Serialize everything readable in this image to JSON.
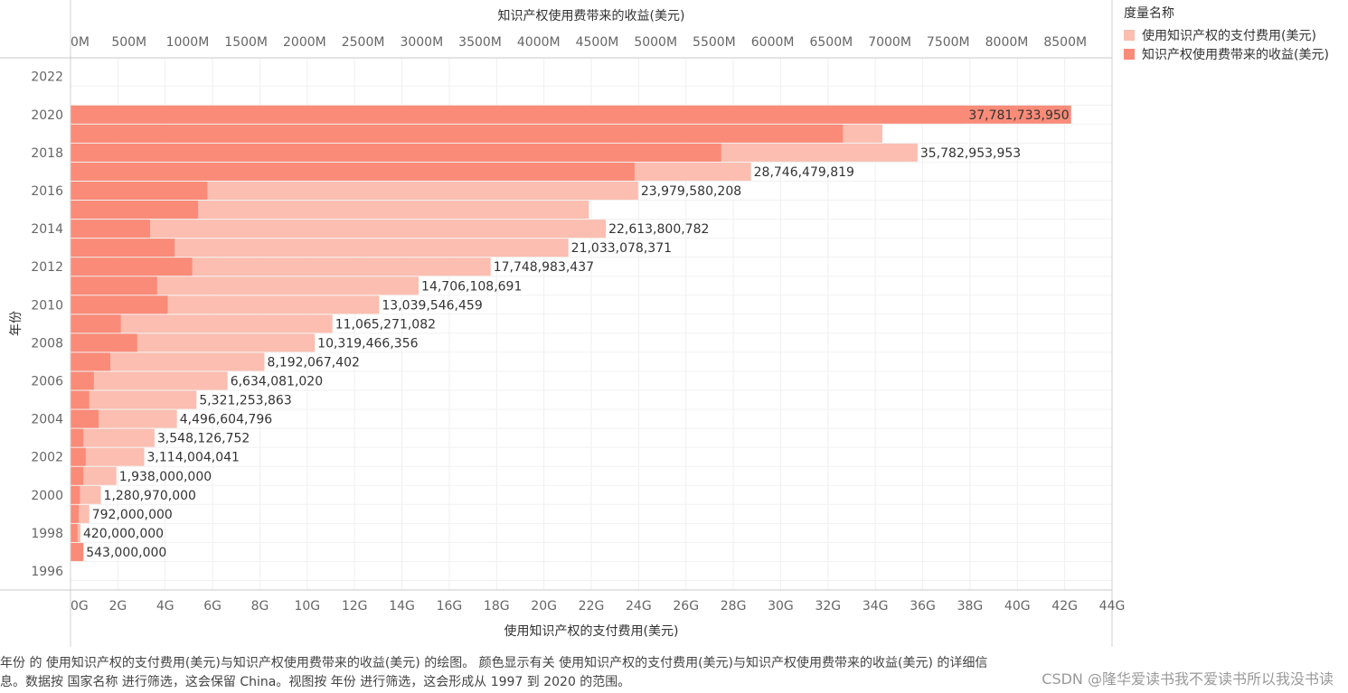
{
  "chart_data": {
    "type": "bar",
    "orientation": "horizontal",
    "y_title": "年份",
    "y_ticks": [
      "2022",
      "2020",
      "2018",
      "2016",
      "2014",
      "2012",
      "2010",
      "2008",
      "2006",
      "2004",
      "2002",
      "2000",
      "1998",
      "1996"
    ],
    "ylim": [
      1996,
      2022
    ],
    "top_axis": {
      "title": "知识产权使用费带来的收益(美元)",
      "ticks": [
        "0M",
        "500M",
        "1000M",
        "1500M",
        "2000M",
        "2500M",
        "3000M",
        "3500M",
        "4000M",
        "4500M",
        "5000M",
        "5500M",
        "6000M",
        "6500M",
        "7000M",
        "7500M",
        "8000M",
        "8500M"
      ],
      "range_musd": [
        0,
        8900
      ]
    },
    "bottom_axis": {
      "title": "使用知识产权的支付费用(美元)",
      "ticks": [
        "0G",
        "2G",
        "4G",
        "6G",
        "8G",
        "10G",
        "12G",
        "14G",
        "16G",
        "18G",
        "20G",
        "22G",
        "24G",
        "26G",
        "28G",
        "30G",
        "32G",
        "34G",
        "36G",
        "38G",
        "40G",
        "42G",
        "44G"
      ],
      "range_gusd": [
        0,
        44
      ]
    },
    "legend": {
      "title": "度量名称",
      "placement": "top-right",
      "items": [
        {
          "label": "使用知识产权的支付费用(美元)",
          "color": "#fbbeb0"
        },
        {
          "label": "知识产权使用费带来的收益(美元)",
          "color": "#f98b78"
        }
      ]
    },
    "series": [
      {
        "name": "使用知识产权的支付费用(美元)",
        "color": "#fbbeb0",
        "unit": "USD",
        "years": [
          1997,
          1998,
          1999,
          2000,
          2001,
          2002,
          2003,
          2004,
          2005,
          2006,
          2007,
          2008,
          2009,
          2010,
          2011,
          2012,
          2013,
          2014,
          2015,
          2016,
          2017,
          2018,
          2019,
          2020
        ],
        "values": [
          543000000,
          420000000,
          792000000,
          1280970000,
          1938000000,
          3114004041,
          3548126752,
          4496604796,
          5321253863,
          6634081020,
          8192067402,
          10319466356,
          11065271082,
          13039546459,
          14706108691,
          17748983437,
          21033078371,
          22613800782,
          21900000000,
          23979580208,
          28746479819,
          35782953953,
          34300000000,
          37781733950
        ]
      },
      {
        "name": "知识产权使用费带来的收益(美元)",
        "color": "#f98b78",
        "unit": "USD",
        "years": [
          1997,
          1998,
          1999,
          2000,
          2001,
          2002,
          2003,
          2004,
          2005,
          2006,
          2007,
          2008,
          2009,
          2010,
          2011,
          2012,
          2013,
          2014,
          2015,
          2016,
          2017,
          2018,
          2019,
          2020
        ],
        "values": [
          110000000,
          60000000,
          70000000,
          80000000,
          110000000,
          130000000,
          110000000,
          240000000,
          160000000,
          200000000,
          340000000,
          570000000,
          430000000,
          830000000,
          740000000,
          1040000000,
          890000000,
          680000000,
          1090000000,
          1170000000,
          4820000000,
          5560000000,
          6600000000,
          8550000000
        ]
      }
    ],
    "data_labels": {
      "1997": "543,000,000",
      "1998": "420,000,000",
      "1999": "792,000,000",
      "2000": "1,280,970,000",
      "2001": "1,938,000,000",
      "2002": "3,114,004,041",
      "2003": "3,548,126,752",
      "2004": "4,496,604,796",
      "2005": "5,321,253,863",
      "2006": "6,634,081,020",
      "2007": "8,192,067,402",
      "2008": "10,319,466,356",
      "2009": "11,065,271,082",
      "2010": "13,039,546,459",
      "2011": "14,706,108,691",
      "2012": "17,748,983,437",
      "2013": "21,033,078,371",
      "2014": "22,613,800,782",
      "2016": "23,979,580,208",
      "2017": "28,746,479,819",
      "2018": "35,782,953,953",
      "2020": "37,781,733,950"
    },
    "grid": true
  },
  "caption": "年份 的 使用知识产权的支付费用(美元)与知识产权使用费带来的收益(美元) 的绘图。 颜色显示有关 使用知识产权的支付费用(美元)与知识产权使用费带来的收益(美元) 的详细信息。数据按 国家名称 进行筛选，这会保留 China。视图按 年份 进行筛选，这会形成从 1997 到 2020 的范围。",
  "watermark": "CSDN @隆华爱读书我不爱读书所以我没书读"
}
